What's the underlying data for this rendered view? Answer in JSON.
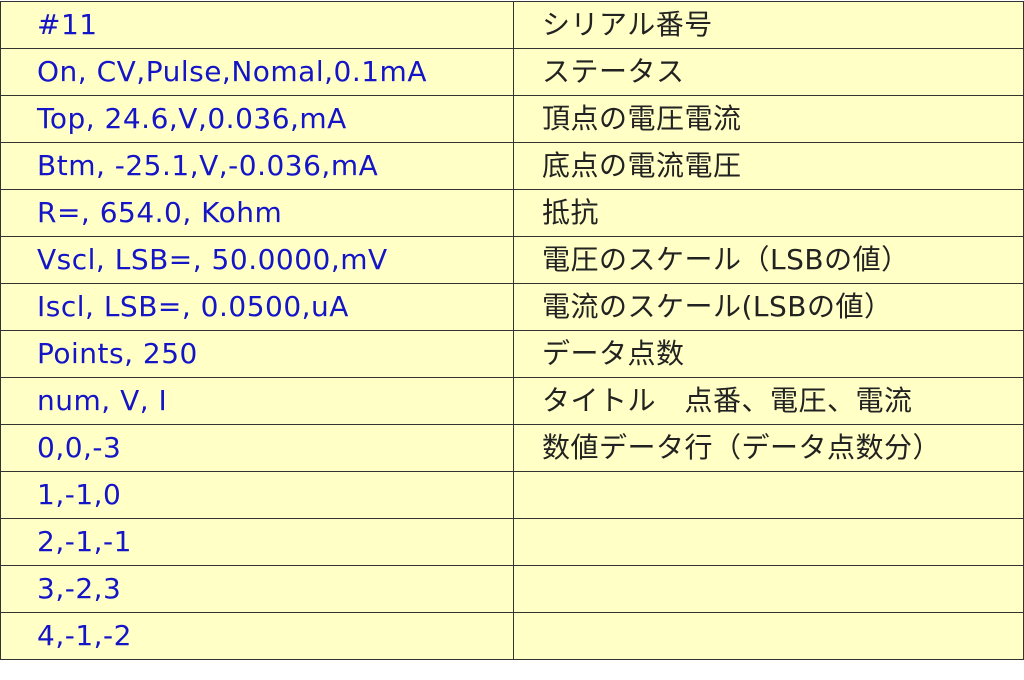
{
  "rows": [
    {
      "value": "#11",
      "description": "シリアル番号"
    },
    {
      "value": "On, CV,Pulse,Nomal,0.1mA",
      "description": "ステータス"
    },
    {
      "value": "Top, 24.6,V,0.036,mA",
      "description": "頂点の電圧電流"
    },
    {
      "value": "Btm, -25.1,V,-0.036,mA",
      "description": "底点の電流電圧"
    },
    {
      "value": " R=, 654.0, Kohm",
      "description": "抵抗"
    },
    {
      "value": "Vscl, LSB=, 50.0000,mV",
      "description": "電圧のスケール（LSBの値）"
    },
    {
      "value": "Iscl, LSB=, 0.0500,uA",
      "description": "電流のスケール(LSBの値）"
    },
    {
      "value": "Points, 250",
      "description": "データ点数"
    },
    {
      "value": "num, V, I",
      "description": "タイトル　点番、電圧、電流"
    },
    {
      "value": "0,0,-3",
      "description": "数値データ行（データ点数分）"
    },
    {
      "value": "1,-1,0",
      "description": ""
    },
    {
      "value": "2,-1,-1",
      "description": ""
    },
    {
      "value": "3,-2,3",
      "description": ""
    },
    {
      "value": "4,-1,-2",
      "description": ""
    }
  ],
  "colors": {
    "background": "#ffffc6",
    "value_text": "#1515c8",
    "description_text": "#222222"
  }
}
